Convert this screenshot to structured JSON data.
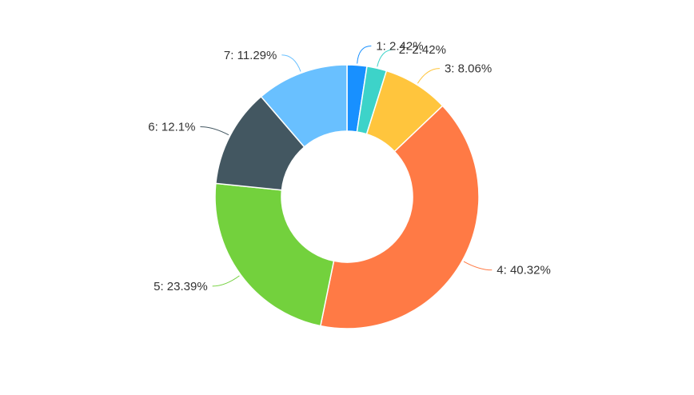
{
  "chart_data": {
    "type": "pie",
    "variant": "donut",
    "title": "",
    "legend": "none",
    "slices": [
      {
        "name": "1",
        "value": 2.42,
        "label": "1: 2.42%",
        "color": "#1890ff"
      },
      {
        "name": "2",
        "value": 2.42,
        "label": "2: 2.42%",
        "color": "#3dd3c9"
      },
      {
        "name": "3",
        "value": 8.06,
        "label": "3: 8.06%",
        "color": "#ffc53d"
      },
      {
        "name": "4",
        "value": 40.32,
        "label": "4: 40.32%",
        "color": "#ff7a45"
      },
      {
        "name": "5",
        "value": 23.39,
        "label": "5: 23.39%",
        "color": "#73d13d"
      },
      {
        "name": "6",
        "value": 12.1,
        "label": "6: 12.1%",
        "color": "#435761"
      },
      {
        "name": "7",
        "value": 11.29,
        "label": "7: 11.29%",
        "color": "#69c0ff"
      }
    ]
  }
}
